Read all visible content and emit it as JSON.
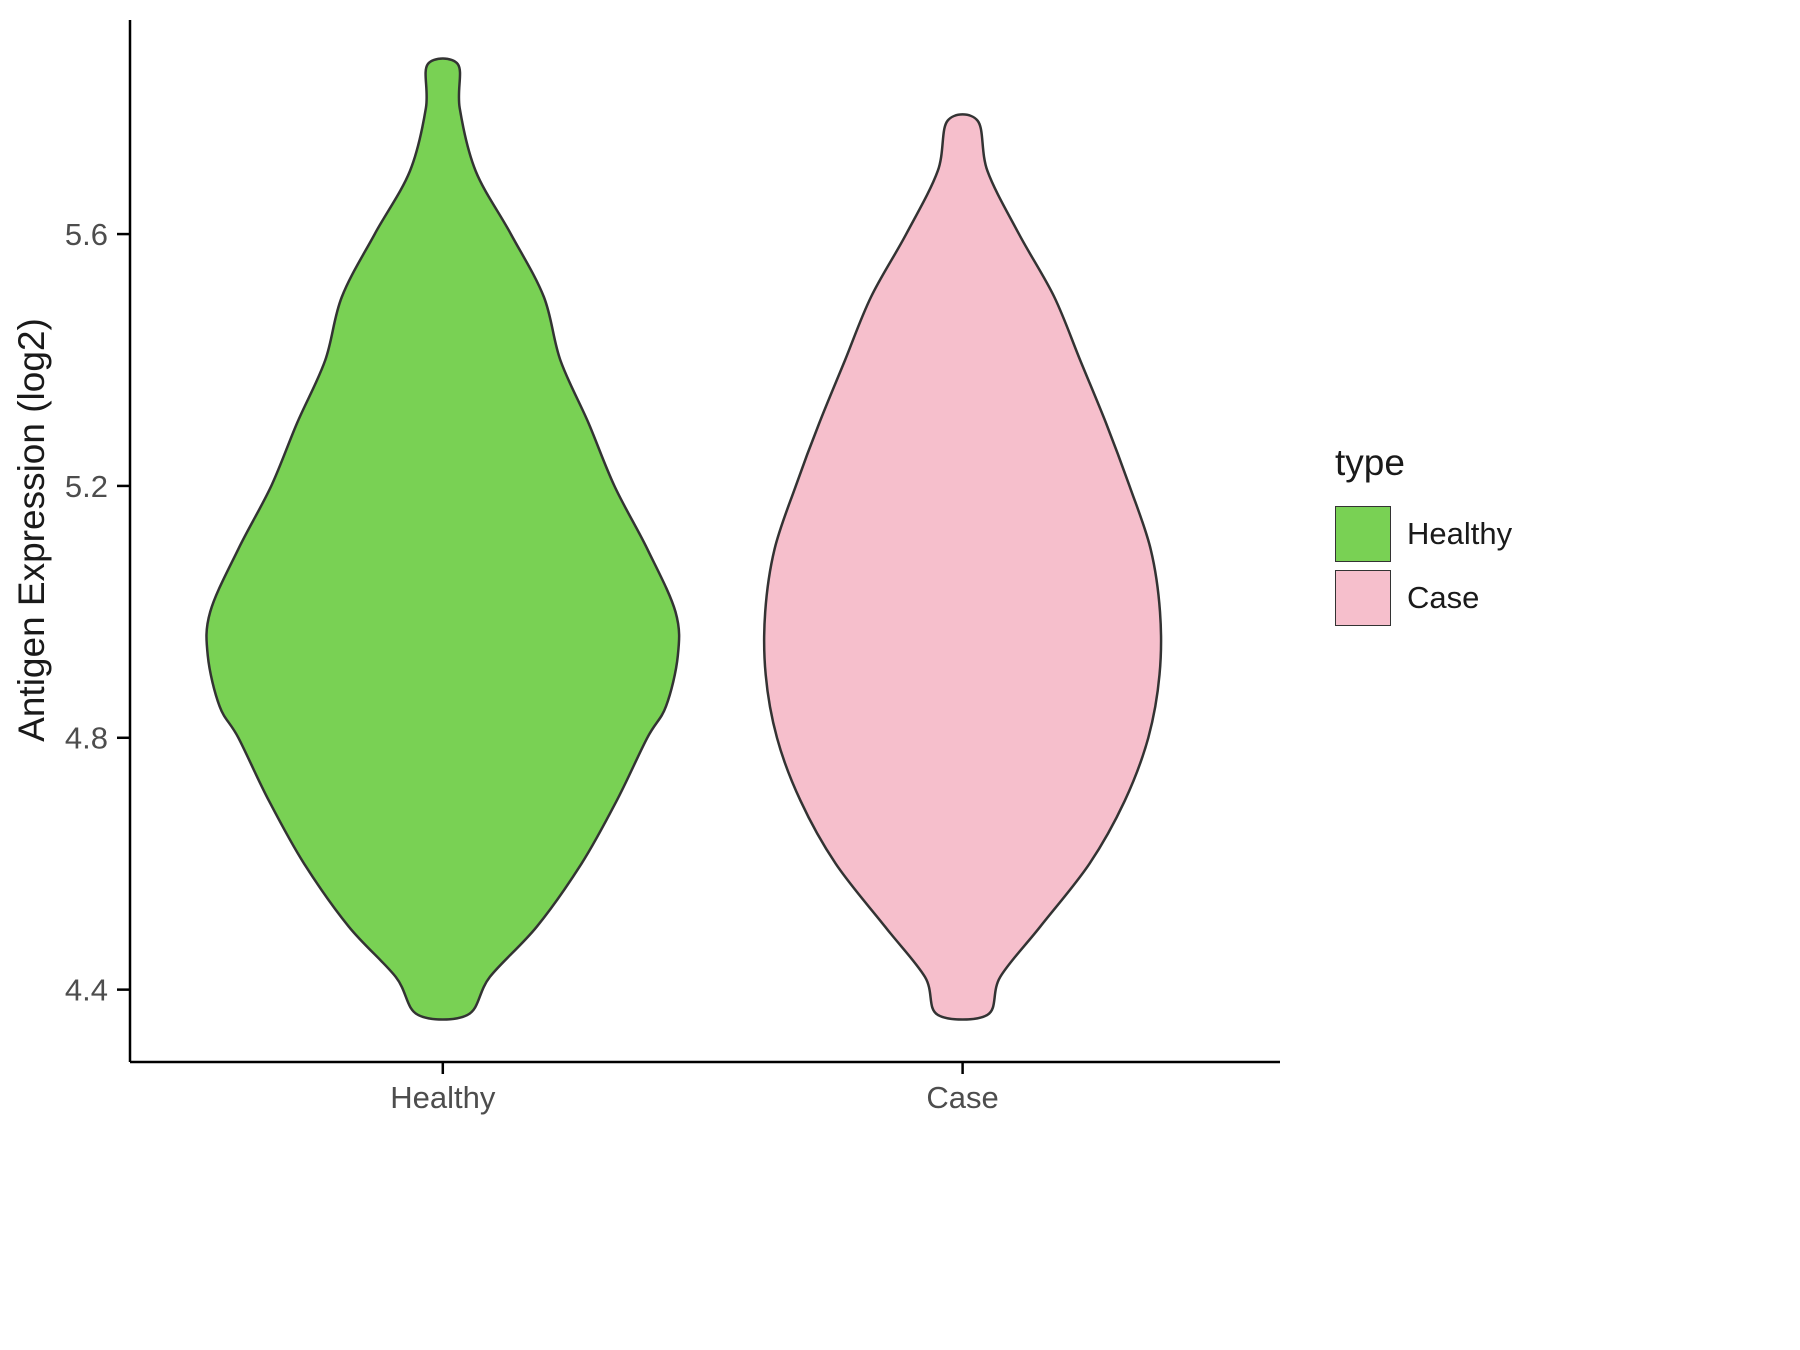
{
  "chart_data": {
    "type": "violin",
    "title": "",
    "xlabel": "",
    "ylabel": "Antigen Expression (log2)",
    "categories": [
      "Healthy",
      "Case"
    ],
    "y_ticks": [
      4.4,
      4.8,
      5.2,
      5.6
    ],
    "y_domain": [
      4.32,
      5.94
    ],
    "grid": false,
    "legend": {
      "title": "type",
      "position": "right"
    },
    "colors": {
      "axis_line": "#000000",
      "axis_text": "#4d4d4d",
      "title_text": "#1a1a1a",
      "violin_outline": "#333333"
    },
    "series": [
      {
        "name": "Healthy",
        "color": "#79D154",
        "value_range": [
          4.36,
          5.87
        ],
        "peak_value": 4.97,
        "profile": [
          [
            5.87,
            0.064
          ],
          [
            5.8,
            0.072
          ],
          [
            5.7,
            0.14
          ],
          [
            5.6,
            0.29
          ],
          [
            5.5,
            0.43
          ],
          [
            5.4,
            0.5
          ],
          [
            5.3,
            0.62
          ],
          [
            5.2,
            0.73
          ],
          [
            5.1,
            0.87
          ],
          [
            5.0,
            0.99
          ],
          [
            4.93,
            1.0
          ],
          [
            4.85,
            0.95
          ],
          [
            4.8,
            0.87
          ],
          [
            4.7,
            0.74
          ],
          [
            4.6,
            0.59
          ],
          [
            4.5,
            0.4
          ],
          [
            4.42,
            0.2
          ],
          [
            4.36,
            0.106
          ]
        ]
      },
      {
        "name": "Case",
        "color": "#F6BFCC",
        "value_range": [
          4.36,
          5.78
        ],
        "peak_value": 4.95,
        "profile": [
          [
            5.78,
            0.064
          ],
          [
            5.7,
            0.106
          ],
          [
            5.6,
            0.24
          ],
          [
            5.5,
            0.39
          ],
          [
            5.4,
            0.5
          ],
          [
            5.3,
            0.61
          ],
          [
            5.2,
            0.71
          ],
          [
            5.1,
            0.8
          ],
          [
            5.0,
            0.84
          ],
          [
            4.9,
            0.838
          ],
          [
            4.8,
            0.79
          ],
          [
            4.7,
            0.69
          ],
          [
            4.6,
            0.54
          ],
          [
            4.5,
            0.33
          ],
          [
            4.42,
            0.16
          ],
          [
            4.36,
            0.106
          ]
        ]
      }
    ]
  }
}
